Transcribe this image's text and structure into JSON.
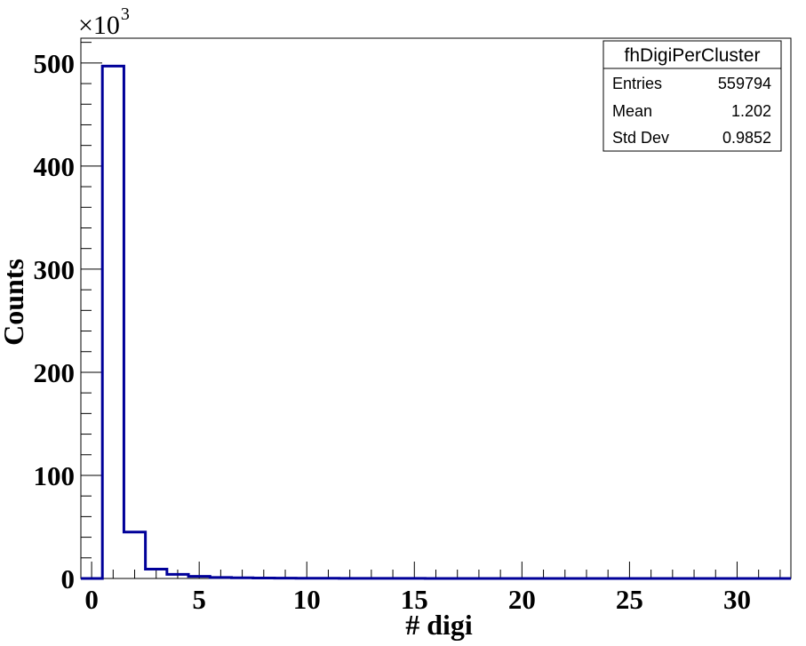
{
  "chart_data": {
    "type": "bar",
    "histogram_name": "fhDigiPerCluster",
    "xlabel": "# digi",
    "ylabel": "Counts",
    "y_multiplier": {
      "base": "×10",
      "exponent": "3"
    },
    "xlim": [
      -0.5,
      32.5
    ],
    "ylim": [
      0,
      524
    ],
    "x_ticks": [
      "0",
      "5",
      "10",
      "15",
      "20",
      "25",
      "30"
    ],
    "y_ticks": [
      "0",
      "100",
      "200",
      "300",
      "400",
      "500"
    ],
    "bin_width": 1,
    "bins": [
      {
        "x": 0,
        "value": 0
      },
      {
        "x": 1,
        "value": 497
      },
      {
        "x": 2,
        "value": 45
      },
      {
        "x": 3,
        "value": 9
      },
      {
        "x": 4,
        "value": 4
      },
      {
        "x": 5,
        "value": 2
      },
      {
        "x": 6,
        "value": 1
      },
      {
        "x": 7,
        "value": 0.6
      },
      {
        "x": 8,
        "value": 0.4
      },
      {
        "x": 9,
        "value": 0.3
      },
      {
        "x": 10,
        "value": 0.2
      },
      {
        "x": 11,
        "value": 0.2
      },
      {
        "x": 12,
        "value": 0.1
      },
      {
        "x": 13,
        "value": 0.1
      },
      {
        "x": 14,
        "value": 0.1
      },
      {
        "x": 15,
        "value": 0.1
      },
      {
        "x": 16,
        "value": 0
      },
      {
        "x": 17,
        "value": 0
      },
      {
        "x": 18,
        "value": 0
      },
      {
        "x": 19,
        "value": 0
      },
      {
        "x": 20,
        "value": 0
      },
      {
        "x": 21,
        "value": 0
      },
      {
        "x": 22,
        "value": 0
      },
      {
        "x": 23,
        "value": 0
      },
      {
        "x": 24,
        "value": 0
      },
      {
        "x": 25,
        "value": 0
      },
      {
        "x": 26,
        "value": 0
      },
      {
        "x": 27,
        "value": 0
      },
      {
        "x": 28,
        "value": 0
      },
      {
        "x": 29,
        "value": 0
      },
      {
        "x": 30,
        "value": 0
      },
      {
        "x": 31,
        "value": 0
      },
      {
        "x": 32,
        "value": 0
      }
    ],
    "line_color": "#000099",
    "stats_box": {
      "title": "fhDigiPerCluster",
      "rows": [
        {
          "label": "Entries",
          "value": "559794"
        },
        {
          "label": "Mean",
          "value": "1.202"
        },
        {
          "label": "Std Dev",
          "value": "0.9852"
        }
      ]
    }
  }
}
